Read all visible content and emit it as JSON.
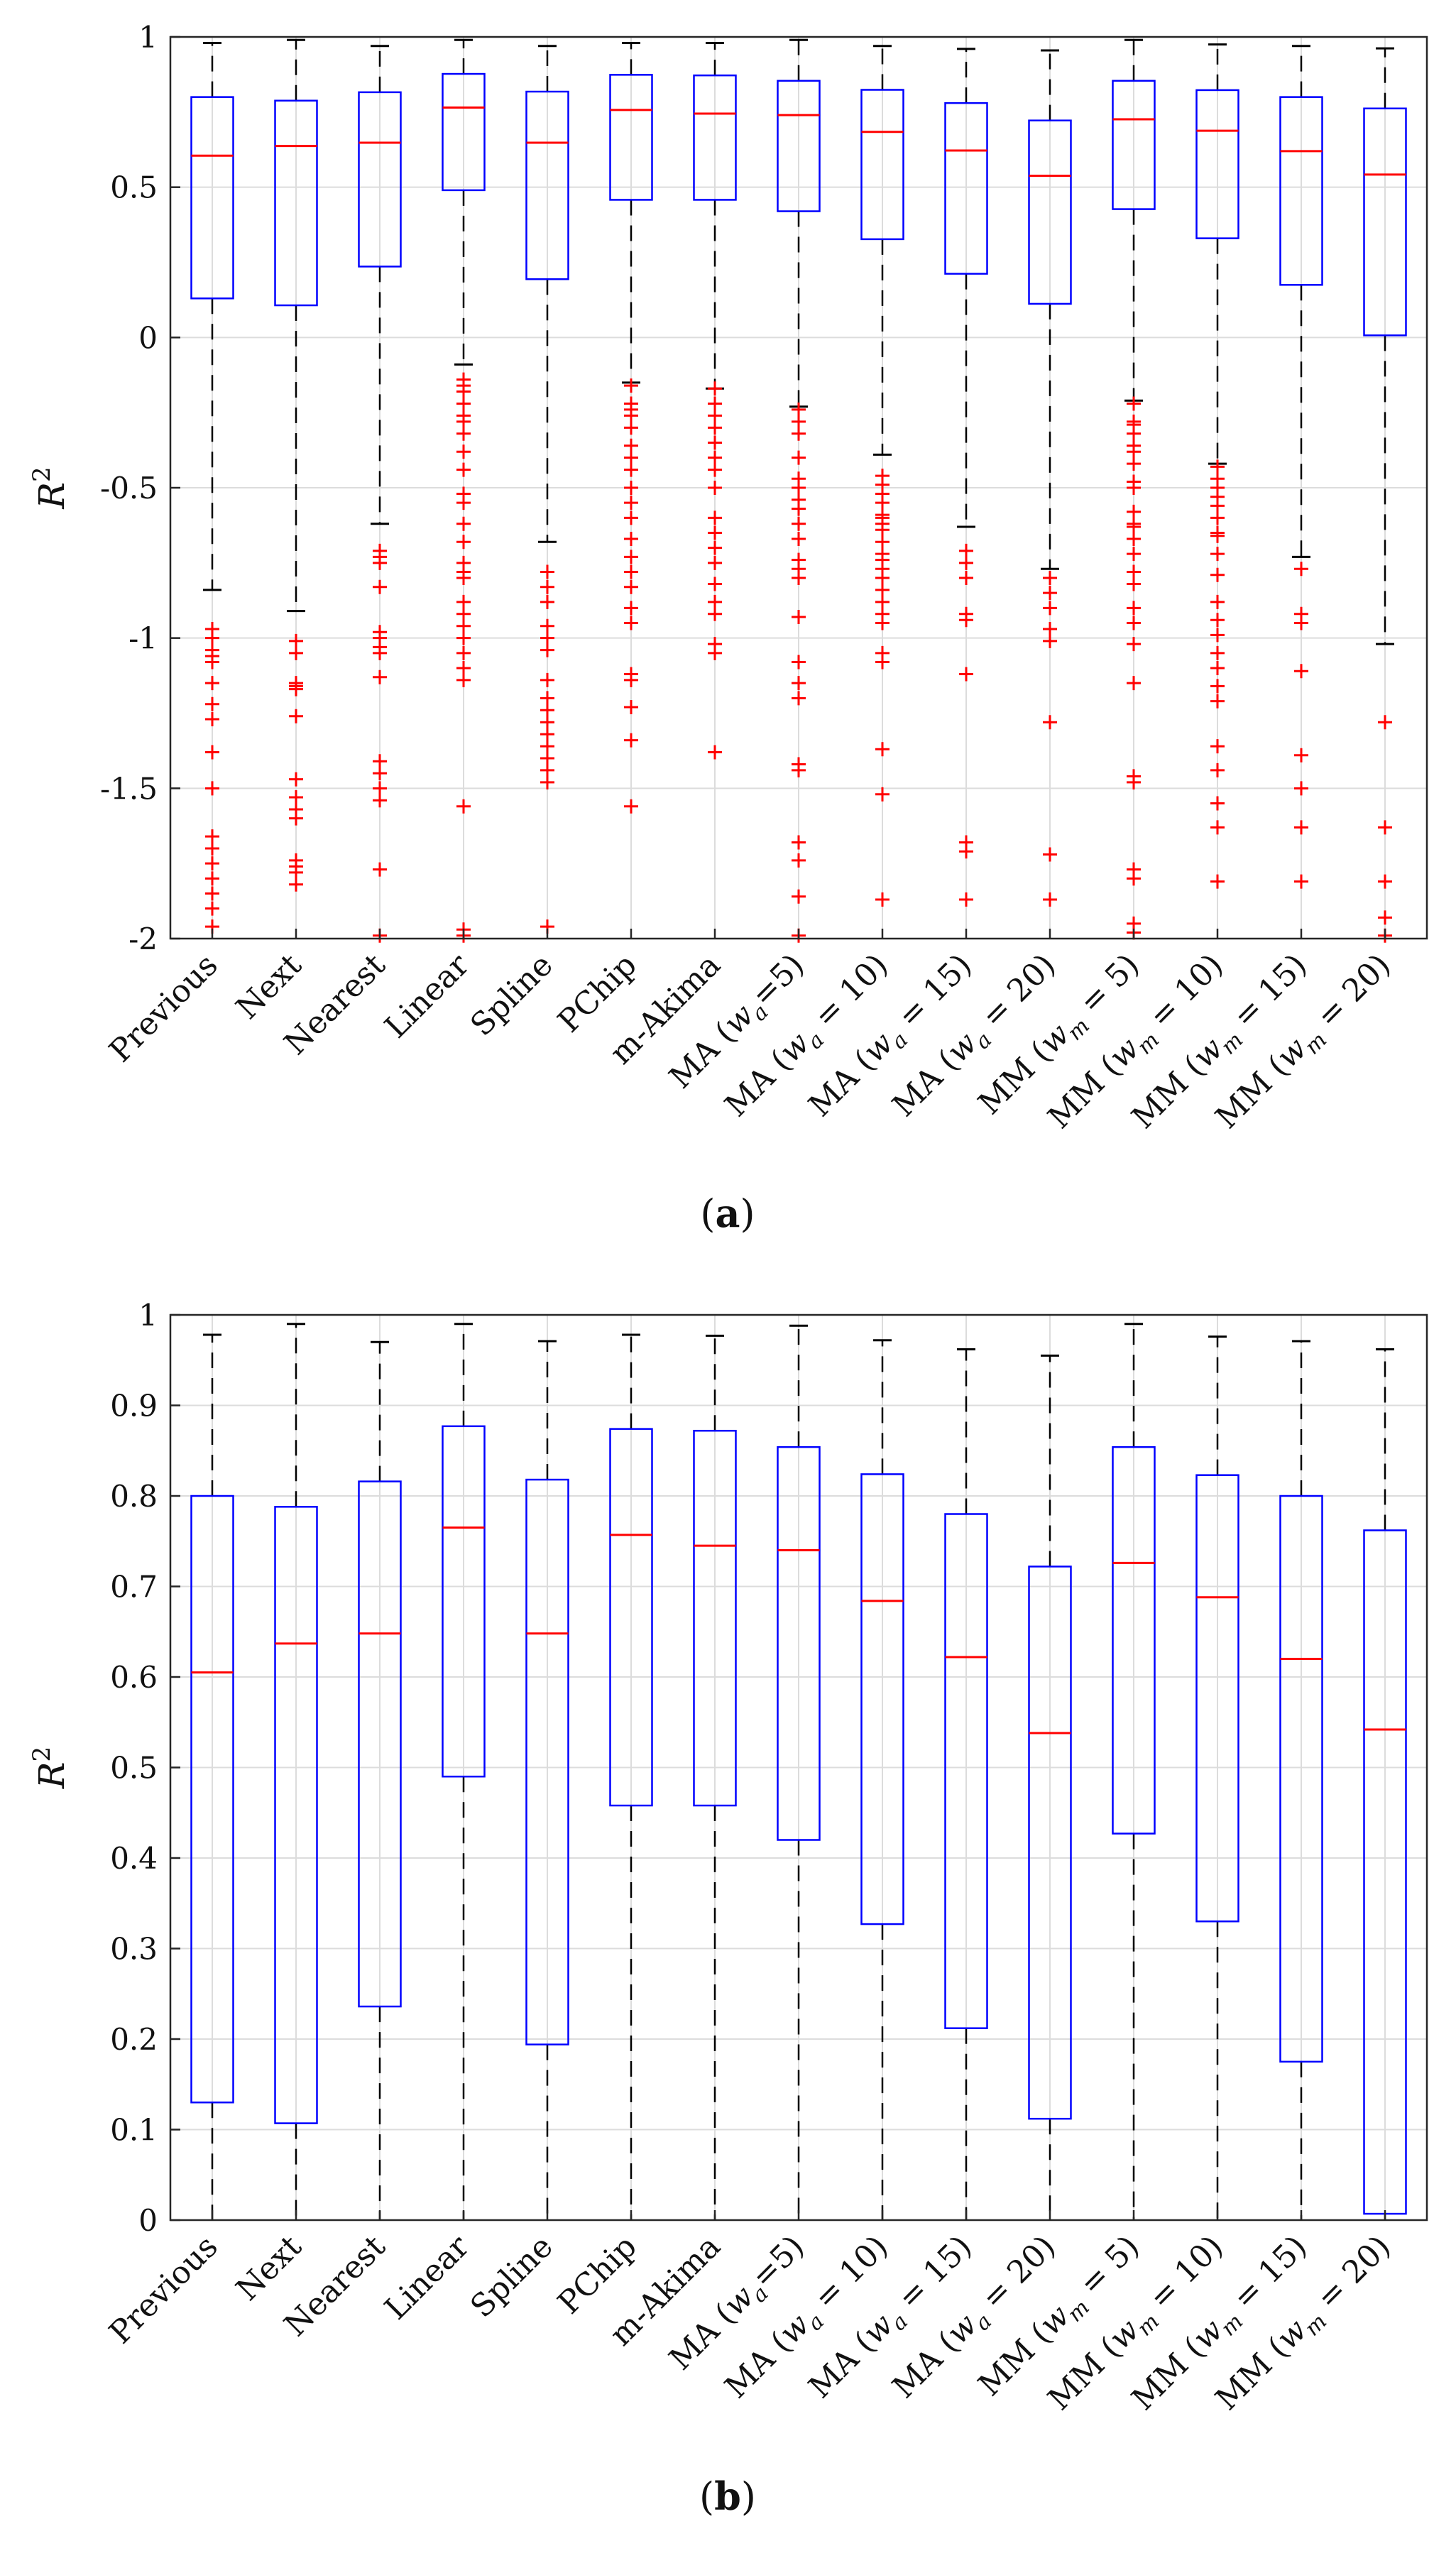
{
  "colors": {
    "box": "#0000ff",
    "median": "#ff0000",
    "outlier": "#ff0000",
    "whisker": "#000000",
    "grid": "#dcdcdc"
  },
  "chart_data": [
    {
      "type": "boxplot",
      "panel_label": "a",
      "ylabel": "R",
      "ylabel_sup": "2",
      "ylim": [
        -2,
        1
      ],
      "yticks": [
        -2,
        -1.5,
        -1,
        -0.5,
        0,
        0.5,
        1
      ],
      "ytick_labels": [
        "-2",
        "-1.5",
        "-1",
        "-0.5",
        "0",
        "0.5",
        "1"
      ],
      "grid": true,
      "categories": [
        {
          "pre": "Previous",
          "sym": "",
          "sub": "",
          "post": ""
        },
        {
          "pre": "Next",
          "sym": "",
          "sub": "",
          "post": ""
        },
        {
          "pre": "Nearest",
          "sym": "",
          "sub": "",
          "post": ""
        },
        {
          "pre": "Linear",
          "sym": "",
          "sub": "",
          "post": ""
        },
        {
          "pre": "Spline",
          "sym": "",
          "sub": "",
          "post": ""
        },
        {
          "pre": "PChip",
          "sym": "",
          "sub": "",
          "post": ""
        },
        {
          "pre": "m-Akima",
          "sym": "",
          "sub": "",
          "post": ""
        },
        {
          "pre": "MA (",
          "sym": "w",
          "sub": "a",
          "post": "=5)"
        },
        {
          "pre": "MA (",
          "sym": "w",
          "sub": "a",
          "post": " = 10)"
        },
        {
          "pre": "MA (",
          "sym": "w",
          "sub": "a",
          "post": " = 15)"
        },
        {
          "pre": "MA (",
          "sym": "w",
          "sub": "a",
          "post": " = 20)"
        },
        {
          "pre": "MM (",
          "sym": "w",
          "sub": "m",
          "post": " = 5)"
        },
        {
          "pre": "MM (",
          "sym": "w",
          "sub": "m",
          "post": " = 10)"
        },
        {
          "pre": "MM (",
          "sym": "w",
          "sub": "m",
          "post": " = 15)"
        },
        {
          "pre": "MM (",
          "sym": "w",
          "sub": "m",
          "post": " = 20)"
        }
      ],
      "boxes": [
        {
          "lw": -0.84,
          "q1": 0.13,
          "med": 0.605,
          "q3": 0.8,
          "uw": 0.98,
          "outliers": [
            -0.97,
            -1.0,
            -1.04,
            -1.06,
            -1.08,
            -1.15,
            -1.22,
            -1.27,
            -1.38,
            -1.5,
            -1.66,
            -1.7,
            -1.75,
            -1.8,
            -1.85,
            -1.9,
            -1.96
          ]
        },
        {
          "lw": -0.91,
          "q1": 0.107,
          "med": 0.637,
          "q3": 0.788,
          "uw": 0.99,
          "outliers": [
            -1.01,
            -1.05,
            -1.15,
            -1.16,
            -1.17,
            -1.26,
            -1.47,
            -1.53,
            -1.57,
            -1.6,
            -1.74,
            -1.76,
            -1.78,
            -1.82
          ]
        },
        {
          "lw": -0.62,
          "q1": 0.236,
          "med": 0.648,
          "q3": 0.816,
          "uw": 0.97,
          "outliers": [
            -0.71,
            -0.73,
            -0.75,
            -0.83,
            -0.98,
            -1.0,
            -1.03,
            -1.05,
            -1.13,
            -1.41,
            -1.45,
            -1.5,
            -1.54,
            -1.77,
            -1.99
          ]
        },
        {
          "lw": -0.09,
          "q1": 0.49,
          "med": 0.765,
          "q3": 0.877,
          "uw": 0.99,
          "outliers": [
            -0.14,
            -0.16,
            -0.18,
            -0.22,
            -0.26,
            -0.28,
            -0.32,
            -0.38,
            -0.44,
            -0.52,
            -0.55,
            -0.62,
            -0.68,
            -0.75,
            -0.78,
            -0.8,
            -0.88,
            -0.92,
            -0.96,
            -1.0,
            -1.05,
            -1.1,
            -1.14,
            -1.56,
            -1.97,
            -1.99
          ]
        },
        {
          "lw": -0.68,
          "q1": 0.194,
          "med": 0.648,
          "q3": 0.818,
          "uw": 0.97,
          "outliers": [
            -0.78,
            -0.83,
            -0.88,
            -0.96,
            -1.0,
            -1.04,
            -1.14,
            -1.2,
            -1.24,
            -1.28,
            -1.32,
            -1.36,
            -1.4,
            -1.44,
            -1.48,
            -1.96
          ]
        },
        {
          "lw": -0.15,
          "q1": 0.458,
          "med": 0.757,
          "q3": 0.874,
          "uw": 0.98,
          "outliers": [
            -0.16,
            -0.22,
            -0.24,
            -0.26,
            -0.3,
            -0.36,
            -0.4,
            -0.44,
            -0.5,
            -0.55,
            -0.6,
            -0.67,
            -0.73,
            -0.78,
            -0.83,
            -0.9,
            -0.95,
            -1.12,
            -1.14,
            -1.23,
            -1.34,
            -1.56
          ]
        },
        {
          "lw": -0.17,
          "q1": 0.458,
          "med": 0.745,
          "q3": 0.872,
          "uw": 0.98,
          "outliers": [
            -0.17,
            -0.22,
            -0.26,
            -0.3,
            -0.35,
            -0.4,
            -0.44,
            -0.5,
            -0.6,
            -0.65,
            -0.7,
            -0.75,
            -0.82,
            -0.88,
            -0.92,
            -1.02,
            -1.05,
            -1.38
          ]
        },
        {
          "lw": -0.23,
          "q1": 0.42,
          "med": 0.74,
          "q3": 0.854,
          "uw": 0.99,
          "outliers": [
            -0.24,
            -0.28,
            -0.32,
            -0.4,
            -0.47,
            -0.5,
            -0.54,
            -0.57,
            -0.62,
            -0.67,
            -0.74,
            -0.77,
            -0.8,
            -0.93,
            -1.08,
            -1.15,
            -1.2,
            -1.42,
            -1.44,
            -1.68,
            -1.74,
            -1.86,
            -1.99
          ]
        },
        {
          "lw": -0.39,
          "q1": 0.327,
          "med": 0.684,
          "q3": 0.824,
          "uw": 0.97,
          "outliers": [
            -0.46,
            -0.49,
            -0.52,
            -0.55,
            -0.59,
            -0.6,
            -0.62,
            -0.64,
            -0.68,
            -0.72,
            -0.74,
            -0.77,
            -0.8,
            -0.84,
            -0.88,
            -0.92,
            -0.95,
            -1.05,
            -1.08,
            -1.37,
            -1.52,
            -1.87
          ]
        },
        {
          "lw": -0.63,
          "q1": 0.212,
          "med": 0.622,
          "q3": 0.78,
          "uw": 0.96,
          "outliers": [
            -0.71,
            -0.75,
            -0.8,
            -0.92,
            -0.94,
            -1.12,
            -1.68,
            -1.71,
            -1.87
          ]
        },
        {
          "lw": -0.77,
          "q1": 0.112,
          "med": 0.538,
          "q3": 0.722,
          "uw": 0.955,
          "outliers": [
            -0.8,
            -0.85,
            -0.9,
            -0.97,
            -1.01,
            -1.28,
            -1.72,
            -1.87
          ]
        },
        {
          "lw": -0.21,
          "q1": 0.427,
          "med": 0.726,
          "q3": 0.854,
          "uw": 0.99,
          "outliers": [
            -0.22,
            -0.28,
            -0.29,
            -0.32,
            -0.36,
            -0.38,
            -0.42,
            -0.48,
            -0.5,
            -0.58,
            -0.62,
            -0.63,
            -0.67,
            -0.72,
            -0.78,
            -0.82,
            -0.9,
            -0.95,
            -1.02,
            -1.15,
            -1.46,
            -1.48,
            -1.77,
            -1.8,
            -1.95,
            -1.98
          ]
        },
        {
          "lw": -0.42,
          "q1": 0.33,
          "med": 0.688,
          "q3": 0.823,
          "uw": 0.975,
          "outliers": [
            -0.43,
            -0.47,
            -0.5,
            -0.53,
            -0.56,
            -0.6,
            -0.65,
            -0.66,
            -0.72,
            -0.79,
            -0.88,
            -0.94,
            -0.99,
            -1.05,
            -1.1,
            -1.16,
            -1.21,
            -1.36,
            -1.44,
            -1.55,
            -1.63,
            -1.81
          ]
        },
        {
          "lw": -0.73,
          "q1": 0.175,
          "med": 0.62,
          "q3": 0.8,
          "uw": 0.97,
          "outliers": [
            -0.77,
            -0.92,
            -0.95,
            -1.11,
            -1.39,
            -1.5,
            -1.63,
            -1.81
          ]
        },
        {
          "lw": -1.02,
          "q1": 0.007,
          "med": 0.542,
          "q3": 0.762,
          "uw": 0.962,
          "outliers": [
            -1.28,
            -1.63,
            -1.81,
            -1.93,
            -1.99
          ]
        }
      ]
    },
    {
      "type": "boxplot",
      "panel_label": "b",
      "ylabel": "R",
      "ylabel_sup": "2",
      "ylim": [
        0,
        1
      ],
      "yticks": [
        0,
        0.1,
        0.2,
        0.3,
        0.4,
        0.5,
        0.6,
        0.7,
        0.8,
        0.9,
        1
      ],
      "ytick_labels": [
        "0",
        "0.1",
        "0.2",
        "0.3",
        "0.4",
        "0.5",
        "0.6",
        "0.7",
        "0.8",
        "0.9",
        "1"
      ],
      "grid": true,
      "categories": [
        {
          "pre": "Previous",
          "sym": "",
          "sub": "",
          "post": ""
        },
        {
          "pre": "Next",
          "sym": "",
          "sub": "",
          "post": ""
        },
        {
          "pre": "Nearest",
          "sym": "",
          "sub": "",
          "post": ""
        },
        {
          "pre": "Linear",
          "sym": "",
          "sub": "",
          "post": ""
        },
        {
          "pre": "Spline",
          "sym": "",
          "sub": "",
          "post": ""
        },
        {
          "pre": "PChip",
          "sym": "",
          "sub": "",
          "post": ""
        },
        {
          "pre": "m-Akima",
          "sym": "",
          "sub": "",
          "post": ""
        },
        {
          "pre": "MA (",
          "sym": "w",
          "sub": "a",
          "post": "=5)"
        },
        {
          "pre": "MA (",
          "sym": "w",
          "sub": "a",
          "post": " = 10)"
        },
        {
          "pre": "MA (",
          "sym": "w",
          "sub": "a",
          "post": " = 15)"
        },
        {
          "pre": "MA (",
          "sym": "w",
          "sub": "a",
          "post": " = 20)"
        },
        {
          "pre": "MM (",
          "sym": "w",
          "sub": "m",
          "post": " = 5)"
        },
        {
          "pre": "MM (",
          "sym": "w",
          "sub": "m",
          "post": " = 10)"
        },
        {
          "pre": "MM (",
          "sym": "w",
          "sub": "m",
          "post": " = 15)"
        },
        {
          "pre": "MM (",
          "sym": "w",
          "sub": "m",
          "post": " = 20)"
        }
      ],
      "boxes": [
        {
          "lw": 0,
          "q1": 0.13,
          "med": 0.605,
          "q3": 0.8,
          "uw": 0.978,
          "outliers": []
        },
        {
          "lw": 0,
          "q1": 0.107,
          "med": 0.637,
          "q3": 0.788,
          "uw": 0.99,
          "outliers": []
        },
        {
          "lw": 0,
          "q1": 0.236,
          "med": 0.648,
          "q3": 0.816,
          "uw": 0.97,
          "outliers": []
        },
        {
          "lw": 0,
          "q1": 0.49,
          "med": 0.765,
          "q3": 0.877,
          "uw": 0.99,
          "outliers": []
        },
        {
          "lw": 0,
          "q1": 0.194,
          "med": 0.648,
          "q3": 0.818,
          "uw": 0.971,
          "outliers": []
        },
        {
          "lw": 0,
          "q1": 0.458,
          "med": 0.757,
          "q3": 0.874,
          "uw": 0.978,
          "outliers": []
        },
        {
          "lw": 0,
          "q1": 0.458,
          "med": 0.745,
          "q3": 0.872,
          "uw": 0.977,
          "outliers": []
        },
        {
          "lw": 0,
          "q1": 0.42,
          "med": 0.74,
          "q3": 0.854,
          "uw": 0.988,
          "outliers": []
        },
        {
          "lw": 0,
          "q1": 0.327,
          "med": 0.684,
          "q3": 0.824,
          "uw": 0.972,
          "outliers": []
        },
        {
          "lw": 0,
          "q1": 0.212,
          "med": 0.622,
          "q3": 0.78,
          "uw": 0.962,
          "outliers": []
        },
        {
          "lw": 0,
          "q1": 0.112,
          "med": 0.538,
          "q3": 0.722,
          "uw": 0.955,
          "outliers": []
        },
        {
          "lw": 0,
          "q1": 0.427,
          "med": 0.726,
          "q3": 0.854,
          "uw": 0.99,
          "outliers": []
        },
        {
          "lw": 0,
          "q1": 0.33,
          "med": 0.688,
          "q3": 0.823,
          "uw": 0.976,
          "outliers": []
        },
        {
          "lw": 0,
          "q1": 0.175,
          "med": 0.62,
          "q3": 0.8,
          "uw": 0.971,
          "outliers": []
        },
        {
          "lw": 0,
          "q1": 0.007,
          "med": 0.542,
          "q3": 0.762,
          "uw": 0.962,
          "outliers": []
        }
      ]
    }
  ]
}
